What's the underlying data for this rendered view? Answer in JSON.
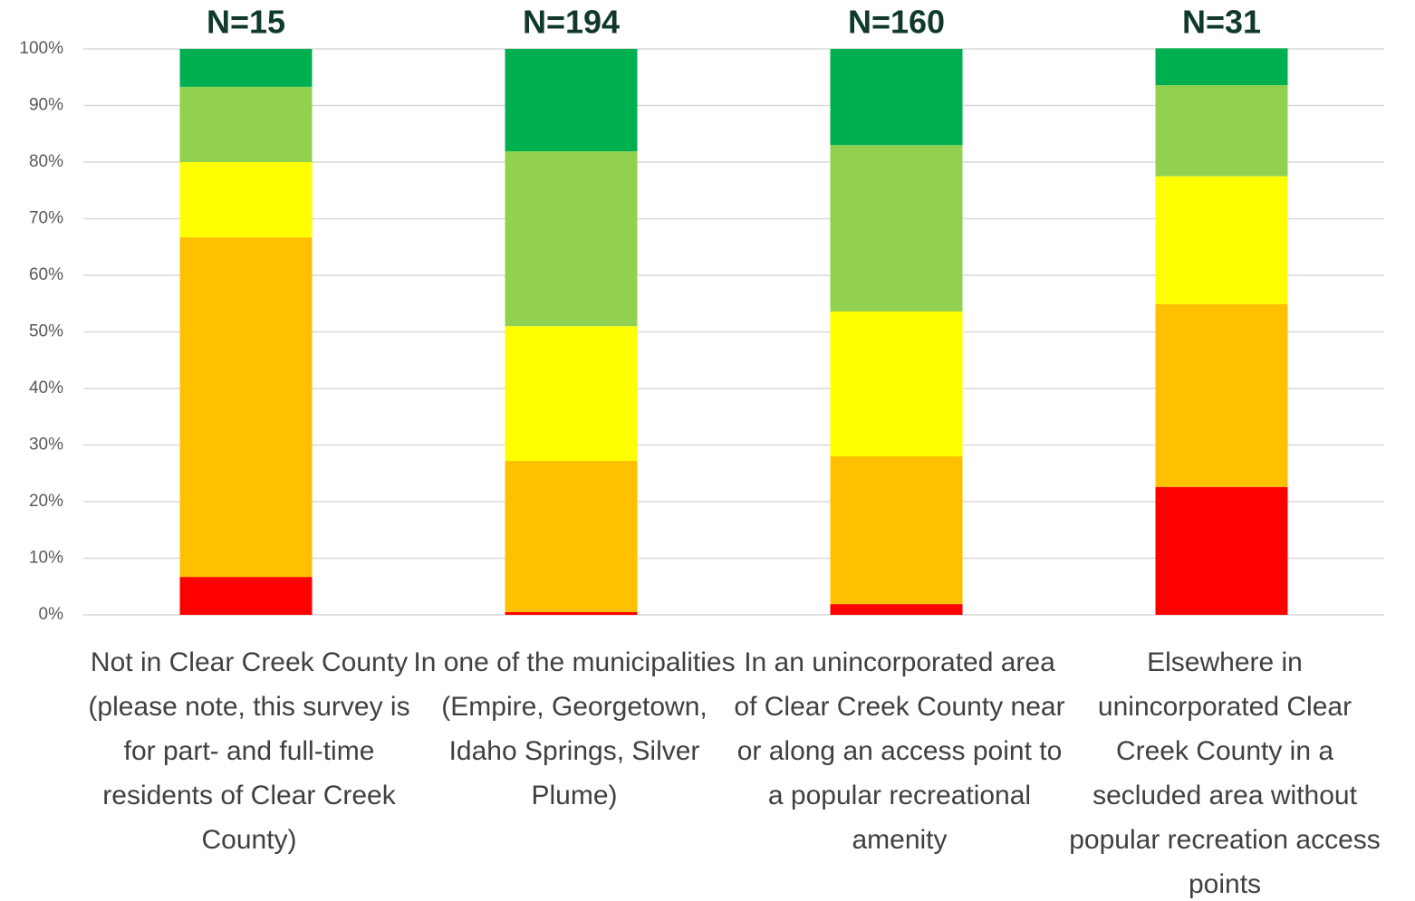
{
  "chart_data": {
    "type": "stacked_bar",
    "categories": [
      "Not in Clear Creek County (please note, this survey is for part- and full-time residents of Clear Creek County)",
      "In one of the municipalities (Empire, Georgetown, Idaho Springs, Silver Plume)",
      "In an unincorporated area of Clear Creek County near or along an access point to a popular recreational amenity",
      "Elsewhere in unincorporated Clear Creek County in a secluded area without popular recreation access points"
    ],
    "annotations": [
      "N=15",
      "N=194",
      "N=160",
      "N=31"
    ],
    "series": [
      {
        "color": "#ff0000",
        "values": [
          6.7,
          0.5,
          1.9,
          22.6
        ]
      },
      {
        "color": "#ffc000",
        "values": [
          60,
          26.7,
          26.1,
          32.3
        ]
      },
      {
        "color": "#ffff00",
        "values": [
          13.3,
          23.8,
          25.6,
          22.6
        ]
      },
      {
        "color": "#92d050",
        "values": [
          13.3,
          30.9,
          29.4,
          16.1
        ]
      },
      {
        "color": "#00b050",
        "values": [
          6.7,
          18.1,
          17.0,
          6.5
        ]
      }
    ],
    "ylim": [
      0,
      100
    ],
    "yticks": [
      {
        "value": 0,
        "label": "0%"
      },
      {
        "value": 10,
        "label": "10%"
      },
      {
        "value": 20,
        "label": "20%"
      },
      {
        "value": 30,
        "label": "30%"
      },
      {
        "value": 40,
        "label": "40%"
      },
      {
        "value": 50,
        "label": "50%"
      },
      {
        "value": 60,
        "label": "60%"
      },
      {
        "value": 70,
        "label": "70%"
      },
      {
        "value": 80,
        "label": "80%"
      },
      {
        "value": 90,
        "label": "90%"
      },
      {
        "value": 100,
        "label": "100%"
      }
    ],
    "grid": true
  }
}
